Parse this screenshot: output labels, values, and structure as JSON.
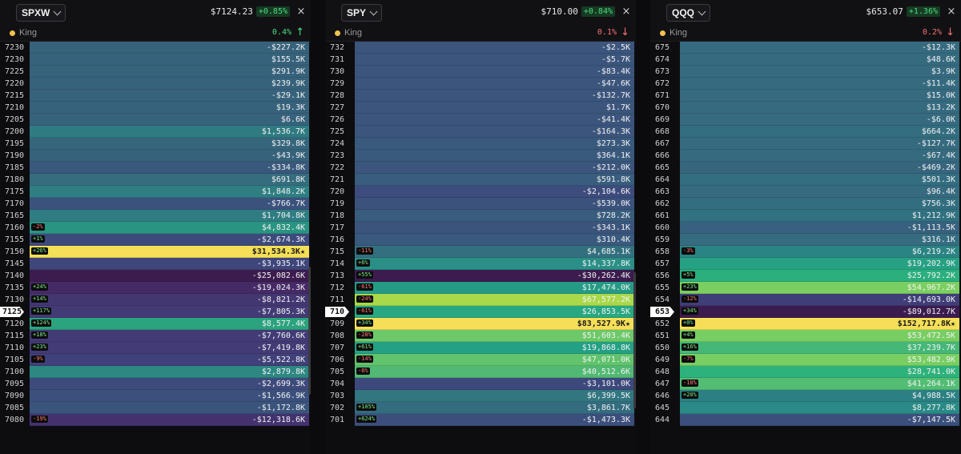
{
  "panels": [
    {
      "ticker": "SPXW",
      "price": "$7124.23",
      "change_pct": "+0.85%",
      "king_label": "King",
      "king_change": "0.4%",
      "king_trend": "up",
      "rows": [
        {
          "strike": "7230",
          "value": "-$227.2K",
          "color": "#37627b"
        },
        {
          "strike": "7230",
          "value": "$155.5K",
          "color": "#37627b"
        },
        {
          "strike": "7225",
          "value": "$291.9K",
          "color": "#37627b"
        },
        {
          "strike": "7220",
          "value": "$239.9K",
          "color": "#37627b"
        },
        {
          "strike": "7215",
          "value": "-$29.1K",
          "color": "#37627b"
        },
        {
          "strike": "7210",
          "value": "$19.3K",
          "color": "#37627b"
        },
        {
          "strike": "7205",
          "value": "$6.6K",
          "color": "#37627b"
        },
        {
          "strike": "7200",
          "value": "$1,536.7K",
          "color": "#2f7b82"
        },
        {
          "strike": "7195",
          "value": "$329.8K",
          "color": "#36667c"
        },
        {
          "strike": "7190",
          "value": "-$43.9K",
          "color": "#37627b"
        },
        {
          "strike": "7185",
          "value": "-$334.8K",
          "color": "#39587c"
        },
        {
          "strike": "7180",
          "value": "$691.8K",
          "color": "#356d7e"
        },
        {
          "strike": "7175",
          "value": "$1,848.2K",
          "color": "#2f7e82"
        },
        {
          "strike": "7170",
          "value": "-$766.7K",
          "color": "#3b527c"
        },
        {
          "strike": "7165",
          "value": "$1,704.8K",
          "color": "#2f7d82"
        },
        {
          "strike": "7160",
          "value": "$4,832.4K",
          "color": "#2a9482",
          "delta": "-2%",
          "delta_sign": "neg"
        },
        {
          "strike": "7155",
          "value": "-$2,674.3K",
          "color": "#3d4a7c",
          "delta": "+1%",
          "delta_sign": "pos"
        },
        {
          "strike": "7150",
          "value": "$31,534.3K",
          "color": "#f5df58",
          "delta": "+26%",
          "delta_sign": "pos",
          "star": "★",
          "highlight": true
        },
        {
          "strike": "7145",
          "value": "-$3,935.1K",
          "color": "#3f467b"
        },
        {
          "strike": "7140",
          "value": "-$25,082.6K",
          "color": "#3c1c4e"
        },
        {
          "strike": "7135",
          "value": "-$19,024.3K",
          "color": "#452a66",
          "delta": "+24%",
          "delta_sign": "pos"
        },
        {
          "strike": "7130",
          "value": "-$8,821.2K",
          "color": "#433772",
          "delta": "+14%",
          "delta_sign": "pos"
        },
        {
          "strike": "7125",
          "value": "-$7,805.3K",
          "color": "#423b76",
          "delta": "+117%",
          "delta_sign": "pos",
          "spot": true
        },
        {
          "strike": "7120",
          "value": "$8,577.4K",
          "color": "#2ba37e",
          "delta": "+124%",
          "delta_sign": "pos"
        },
        {
          "strike": "7115",
          "value": "-$7,760.6K",
          "color": "#423b76",
          "delta": "+18%",
          "delta_sign": "pos"
        },
        {
          "strike": "7110",
          "value": "-$7,419.8K",
          "color": "#423b76",
          "delta": "+23%",
          "delta_sign": "pos"
        },
        {
          "strike": "7105",
          "value": "-$5,522.8K",
          "color": "#40407a",
          "delta": "-9%",
          "delta_sign": "neg"
        },
        {
          "strike": "7100",
          "value": "$2,879.8K",
          "color": "#2d8882"
        },
        {
          "strike": "7095",
          "value": "-$2,699.3K",
          "color": "#3d4a7c"
        },
        {
          "strike": "7090",
          "value": "-$1,566.9K",
          "color": "#3b507c"
        },
        {
          "strike": "7085",
          "value": "-$1,172.8K",
          "color": "#3a547c"
        },
        {
          "strike": "7080",
          "value": "-$12,318.6K",
          "color": "#44326f",
          "delta": "-19%",
          "delta_sign": "neg"
        }
      ]
    },
    {
      "ticker": "SPY",
      "price": "$710.00",
      "change_pct": "+0.84%",
      "king_label": "King",
      "king_change": "0.1%",
      "king_trend": "down",
      "rows": [
        {
          "strike": "732",
          "value": "-$2.5K",
          "color": "#3b557c"
        },
        {
          "strike": "731",
          "value": "-$5.7K",
          "color": "#3b557c"
        },
        {
          "strike": "730",
          "value": "-$83.4K",
          "color": "#3b557c"
        },
        {
          "strike": "729",
          "value": "-$47.6K",
          "color": "#3b557c"
        },
        {
          "strike": "728",
          "value": "-$132.7K",
          "color": "#3b557c"
        },
        {
          "strike": "727",
          "value": "$1.7K",
          "color": "#3b557c"
        },
        {
          "strike": "726",
          "value": "-$41.4K",
          "color": "#3b557c"
        },
        {
          "strike": "725",
          "value": "-$164.3K",
          "color": "#3b557c"
        },
        {
          "strike": "724",
          "value": "$273.3K",
          "color": "#39597d"
        },
        {
          "strike": "723",
          "value": "$364.1K",
          "color": "#39597d"
        },
        {
          "strike": "722",
          "value": "-$212.0K",
          "color": "#3b557c"
        },
        {
          "strike": "721",
          "value": "$591.8K",
          "color": "#385d7d"
        },
        {
          "strike": "720",
          "value": "-$2,104.6K",
          "color": "#3d4c7c"
        },
        {
          "strike": "719",
          "value": "-$539.0K",
          "color": "#3b527c"
        },
        {
          "strike": "718",
          "value": "$728.2K",
          "color": "#385d7d"
        },
        {
          "strike": "717",
          "value": "-$343.1K",
          "color": "#3b547c"
        },
        {
          "strike": "716",
          "value": "$310.4K",
          "color": "#39597d"
        },
        {
          "strike": "715",
          "value": "$4,685.1K",
          "color": "#33707f",
          "delta": "-11%",
          "delta_sign": "neg"
        },
        {
          "strike": "714",
          "value": "$14,337.8K",
          "color": "#2a8f86",
          "delta": "+6%",
          "delta_sign": "pos"
        },
        {
          "strike": "713",
          "value": "-$30,262.4K",
          "color": "#3c1c4e",
          "delta": "+55%",
          "delta_sign": "pos"
        },
        {
          "strike": "712",
          "value": "$17,474.0K",
          "color": "#259b86",
          "delta": "-61%",
          "delta_sign": "neg"
        },
        {
          "strike": "711",
          "value": "$67,577.2K",
          "color": "#a9d84a",
          "delta": "-24%",
          "delta_sign": "neg"
        },
        {
          "strike": "710",
          "value": "$26,853.5K",
          "color": "#27a881",
          "delta": "-61%",
          "delta_sign": "neg",
          "spot": true
        },
        {
          "strike": "709",
          "value": "$83,527.9K",
          "color": "#f5df58",
          "delta": "+34%",
          "delta_sign": "pos",
          "star": "★",
          "highlight": true
        },
        {
          "strike": "708",
          "value": "$51,603.4K",
          "color": "#6cc868",
          "delta": "-28%",
          "delta_sign": "neg"
        },
        {
          "strike": "707",
          "value": "$19,868.8K",
          "color": "#24a084",
          "delta": "+61%",
          "delta_sign": "pos"
        },
        {
          "strike": "706",
          "value": "$47,071.0K",
          "color": "#61c36b",
          "delta": "-14%",
          "delta_sign": "neg"
        },
        {
          "strike": "705",
          "value": "$40,512.6K",
          "color": "#51b973",
          "delta": "-6%",
          "delta_sign": "neg"
        },
        {
          "strike": "704",
          "value": "-$3,101.0K",
          "color": "#3d487c"
        },
        {
          "strike": "703",
          "value": "$6,399.5K",
          "color": "#327680"
        },
        {
          "strike": "702",
          "value": "$3,861.7K",
          "color": "#346c7f",
          "delta": "+105%",
          "delta_sign": "pos"
        },
        {
          "strike": "701",
          "value": "-$1,473.3K",
          "color": "#3c4f7c",
          "delta": "+624%",
          "delta_sign": "pos"
        }
      ]
    },
    {
      "ticker": "QQQ",
      "price": "$653.07",
      "change_pct": "+1.36%",
      "king_label": "King",
      "king_change": "0.2%",
      "king_trend": "down",
      "rows": [
        {
          "strike": "675",
          "value": "-$12.3K",
          "color": "#366a7f"
        },
        {
          "strike": "674",
          "value": "$48.6K",
          "color": "#366a7f"
        },
        {
          "strike": "673",
          "value": "$3.9K",
          "color": "#366a7f"
        },
        {
          "strike": "672",
          "value": "-$11.4K",
          "color": "#366a7f"
        },
        {
          "strike": "671",
          "value": "$15.0K",
          "color": "#366a7f"
        },
        {
          "strike": "670",
          "value": "$13.2K",
          "color": "#366a7f"
        },
        {
          "strike": "669",
          "value": "-$6.0K",
          "color": "#366a7f"
        },
        {
          "strike": "668",
          "value": "$664.2K",
          "color": "#336e80"
        },
        {
          "strike": "667",
          "value": "-$127.7K",
          "color": "#366a7f"
        },
        {
          "strike": "666",
          "value": "-$67.4K",
          "color": "#366a7f"
        },
        {
          "strike": "665",
          "value": "-$469.2K",
          "color": "#37657e"
        },
        {
          "strike": "664",
          "value": "$501.3K",
          "color": "#336e80"
        },
        {
          "strike": "663",
          "value": "$96.4K",
          "color": "#366a7f"
        },
        {
          "strike": "662",
          "value": "$756.3K",
          "color": "#336e80"
        },
        {
          "strike": "661",
          "value": "$1,212.9K",
          "color": "#317180"
        },
        {
          "strike": "660",
          "value": "-$1,113.5K",
          "color": "#37617e"
        },
        {
          "strike": "659",
          "value": "$316.1K",
          "color": "#356c7f"
        },
        {
          "strike": "658",
          "value": "$6,219.2K",
          "color": "#2b8484",
          "delta": "-3%",
          "delta_sign": "neg"
        },
        {
          "strike": "657",
          "value": "$19,202.9K",
          "color": "#27a183"
        },
        {
          "strike": "656",
          "value": "$25,792.2K",
          "color": "#2aaf7d",
          "delta": "+5%",
          "delta_sign": "pos"
        },
        {
          "strike": "655",
          "value": "$54,967.2K",
          "color": "#7bcf61",
          "delta": "+23%",
          "delta_sign": "pos"
        },
        {
          "strike": "654",
          "value": "-$14,693.0K",
          "color": "#3f3e78",
          "delta": "-12%",
          "delta_sign": "neg"
        },
        {
          "strike": "653",
          "value": "-$89,012.7K",
          "color": "#3c1c4e",
          "delta": "+34%",
          "delta_sign": "pos",
          "spot": true
        },
        {
          "strike": "652",
          "value": "$152,717.8K",
          "color": "#f5df58",
          "delta": "+0%",
          "delta_sign": "pos",
          "star": "★",
          "highlight": true
        },
        {
          "strike": "651",
          "value": "$53,472.5K",
          "color": "#78ce62",
          "delta": "+4%",
          "delta_sign": "pos"
        },
        {
          "strike": "650",
          "value": "$37,239.7K",
          "color": "#45b878",
          "delta": "+16%",
          "delta_sign": "pos"
        },
        {
          "strike": "649",
          "value": "$53,482.9K",
          "color": "#78ce62",
          "delta": "-7%",
          "delta_sign": "neg"
        },
        {
          "strike": "648",
          "value": "$28,741.0K",
          "color": "#2eb27b"
        },
        {
          "strike": "647",
          "value": "$41,264.1K",
          "color": "#52bd73",
          "delta": "-10%",
          "delta_sign": "neg"
        },
        {
          "strike": "646",
          "value": "$4,988.5K",
          "color": "#2c8083",
          "delta": "+20%",
          "delta_sign": "pos"
        },
        {
          "strike": "645",
          "value": "$8,277.8K",
          "color": "#2a8a85"
        },
        {
          "strike": "644",
          "value": "-$7,147.5K",
          "color": "#3b4f7c"
        }
      ]
    }
  ]
}
